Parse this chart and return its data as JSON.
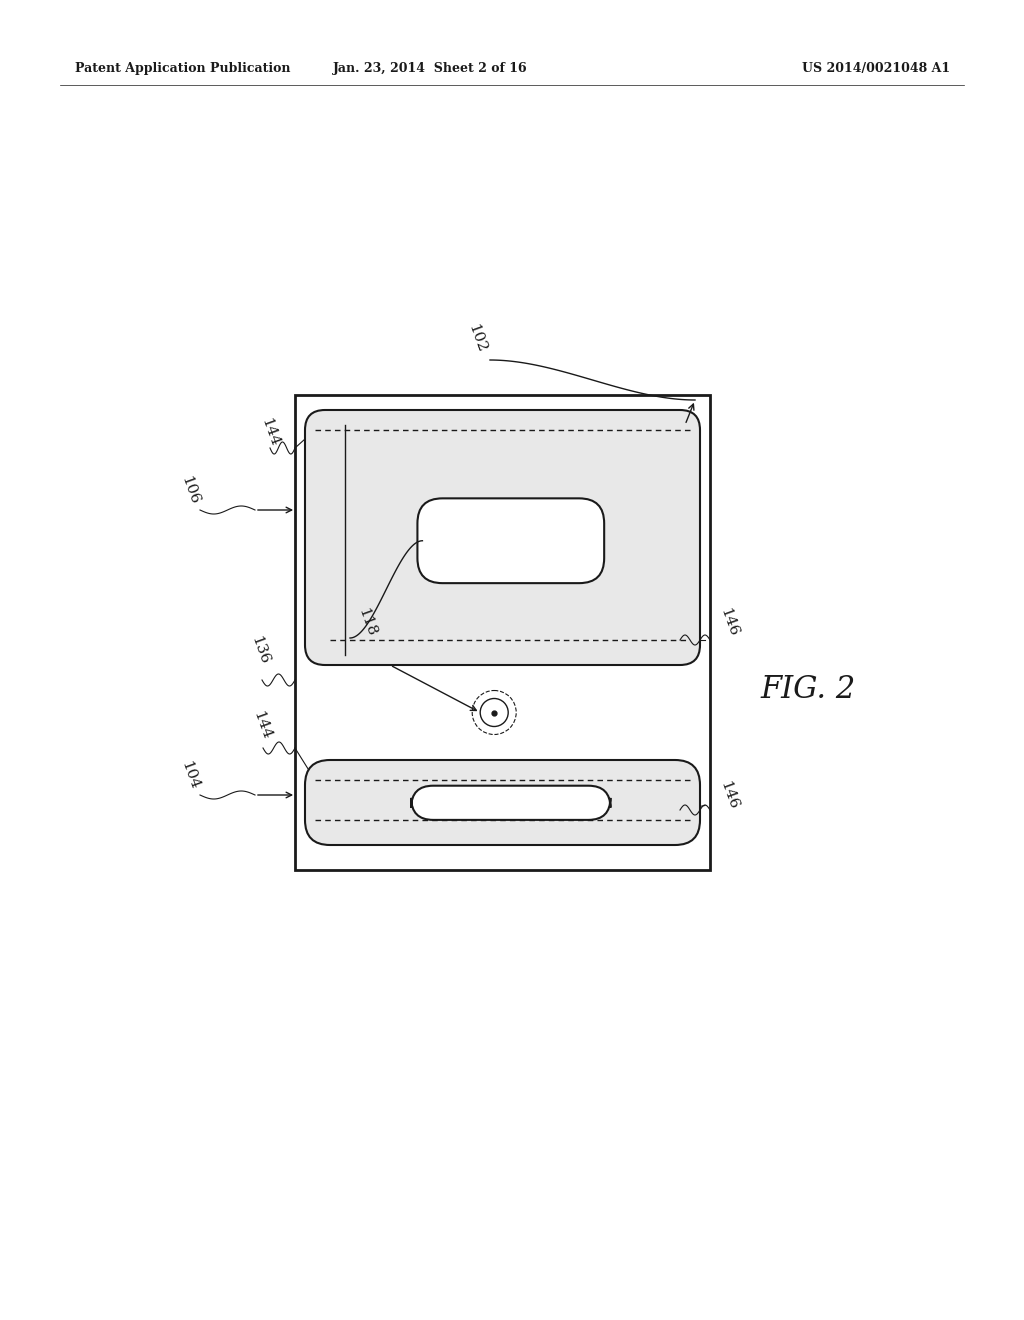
{
  "bg_color": "#ffffff",
  "header_left": "Patent Application Publication",
  "header_center": "Jan. 23, 2014  Sheet 2 of 16",
  "header_right": "US 2014/0021048 A1",
  "fig_label": "FIG. 2",
  "label_102": "102",
  "label_106": "106",
  "label_104": "104",
  "label_136": "136",
  "label_118": "118",
  "label_144_top": "144",
  "label_144_mid": "144",
  "label_146_top": "146",
  "label_146_bot": "146",
  "color_line": "#1a1a1a",
  "color_bg": "#ffffff",
  "color_chamber_fill": "#e8e8e8"
}
